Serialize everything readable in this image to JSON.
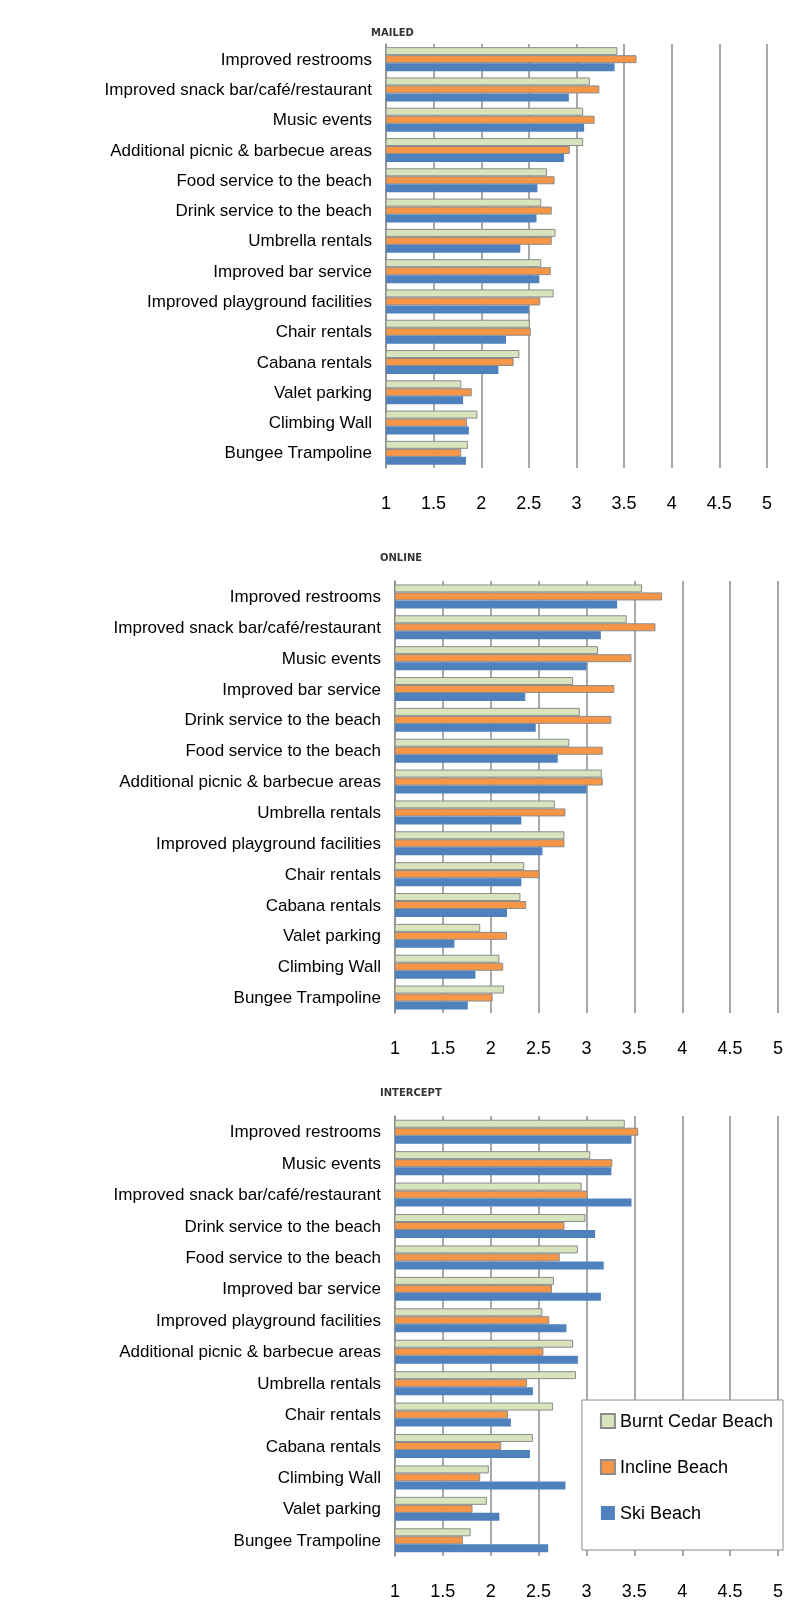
{
  "chart_data": [
    {
      "type": "bar",
      "title": "MAILED",
      "orientation": "horizontal",
      "grid": "x",
      "legend": false,
      "categories": [
        "Improved restrooms",
        "Improved snack bar/café/restaurant",
        "Music events",
        "Additional picnic & barbecue areas",
        "Food service to the beach",
        "Drink service to the beach",
        "Umbrella rentals",
        "Improved bar service",
        "Improved playground facilities",
        "Chair rentals",
        "Cabana rentals",
        "Valet parking",
        "Climbing Wall",
        "Bungee Trampoline"
      ],
      "series": [
        {
          "color": "#d7e4bd",
          "values": [
            3.43,
            3.14,
            3.07,
            3.07,
            2.69,
            2.63,
            2.78,
            2.63,
            2.76,
            2.51,
            2.4,
            1.79,
            1.96,
            1.86
          ]
        },
        {
          "color": "#f79646",
          "values": [
            3.63,
            3.24,
            3.19,
            2.93,
            2.77,
            2.74,
            2.74,
            2.73,
            2.62,
            2.52,
            2.34,
            1.9,
            1.85,
            1.79
          ]
        },
        {
          "color": "#4f81bd",
          "values": [
            3.4,
            2.92,
            3.08,
            2.87,
            2.59,
            2.58,
            2.41,
            2.61,
            2.5,
            2.26,
            2.18,
            1.81,
            1.87,
            1.84
          ]
        }
      ],
      "xlim": [
        1,
        5
      ],
      "xticks": [
        1,
        1.5,
        2,
        2.5,
        3,
        3.5,
        4,
        4.5,
        5
      ]
    },
    {
      "type": "bar",
      "title": "ONLINE",
      "orientation": "horizontal",
      "grid": "x",
      "legend": false,
      "categories": [
        "Improved restrooms",
        "Improved snack bar/café/restaurant",
        "Music events",
        "Improved bar service",
        "Drink service to the beach",
        "Food service to the beach",
        "Additional picnic & barbecue areas",
        "Umbrella rentals",
        "Improved playground facilities",
        "Chair rentals",
        "Cabana rentals",
        "Valet parking",
        "Climbing Wall",
        "Bungee Trampoline"
      ],
      "series": [
        {
          "color": "#d7e4bd",
          "values": [
            3.58,
            3.42,
            3.12,
            2.86,
            2.93,
            2.82,
            3.16,
            2.67,
            2.77,
            2.35,
            2.31,
            1.89,
            2.09,
            2.14
          ]
        },
        {
          "color": "#f79646",
          "values": [
            3.79,
            3.72,
            3.47,
            3.29,
            3.26,
            3.17,
            3.17,
            2.78,
            2.77,
            2.51,
            2.37,
            2.17,
            2.13,
            2.02
          ]
        },
        {
          "color": "#4f81bd",
          "values": [
            3.32,
            3.15,
            3.0,
            2.36,
            2.47,
            2.7,
            3.0,
            2.32,
            2.54,
            2.32,
            2.17,
            1.62,
            1.84,
            1.76
          ]
        }
      ],
      "xlim": [
        1,
        5
      ],
      "xticks": [
        1,
        1.5,
        2,
        2.5,
        3,
        3.5,
        4,
        4.5,
        5
      ]
    },
    {
      "type": "bar",
      "title": "INTERCEPT",
      "orientation": "horizontal",
      "grid": "x",
      "legend": "bottom right",
      "categories": [
        "Improved restrooms",
        "Music events",
        "Improved snack bar/café/restaurant",
        "Drink service to the beach",
        "Food service to the beach",
        "Improved bar service",
        "Improved playground facilities",
        "Additional picnic & barbecue areas",
        "Umbrella rentals",
        "Chair rentals",
        "Cabana rentals",
        "Climbing Wall",
        "Valet parking",
        "Bungee Trampoline"
      ],
      "series": [
        {
          "name": "Burnt Cedar Beach",
          "color": "#d7e4bd",
          "values": [
            3.4,
            3.04,
            2.95,
            2.99,
            2.91,
            2.66,
            2.54,
            2.86,
            2.89,
            2.65,
            2.44,
            1.98,
            1.96,
            1.79
          ]
        },
        {
          "name": "Incline Beach",
          "color": "#f79646",
          "values": [
            3.54,
            3.27,
            3.01,
            2.77,
            2.72,
            2.64,
            2.61,
            2.55,
            2.38,
            2.18,
            2.11,
            1.89,
            1.81,
            1.71
          ]
        },
        {
          "name": "Ski Beach",
          "color": "#4f81bd",
          "values": [
            3.47,
            3.26,
            3.47,
            3.09,
            3.18,
            3.15,
            2.79,
            2.91,
            2.44,
            2.21,
            2.41,
            2.78,
            2.09,
            2.6
          ]
        }
      ],
      "xlim": [
        1,
        5
      ],
      "xticks": [
        1,
        1.5,
        2,
        2.5,
        3,
        3.5,
        4,
        4.5,
        5
      ]
    }
  ]
}
